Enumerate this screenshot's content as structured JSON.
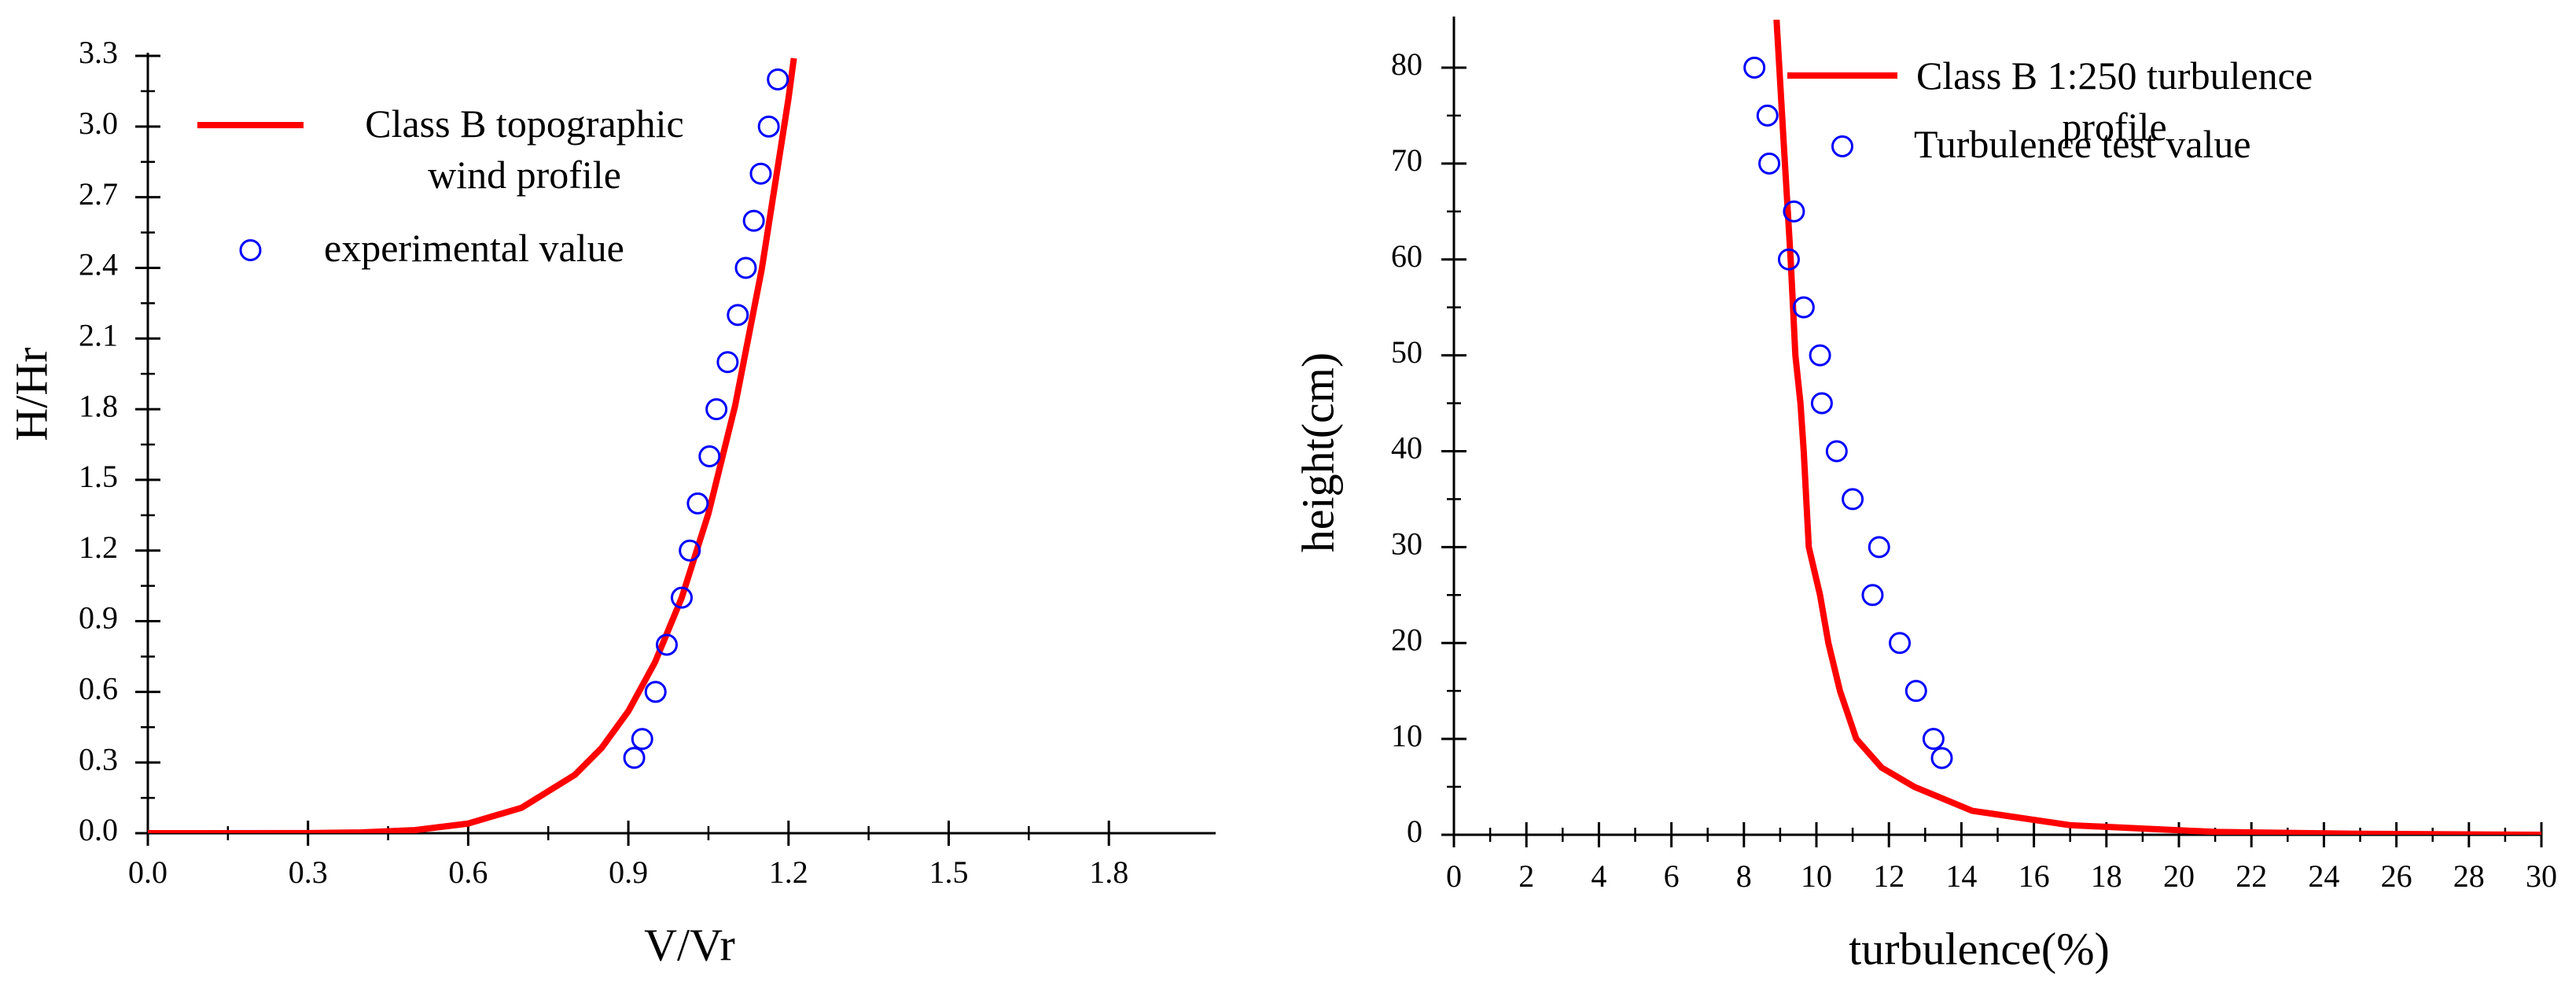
{
  "chart_data": [
    {
      "type": "line",
      "xlabel": "V/Vr",
      "ylabel": "H/Hr",
      "xlim": [
        0,
        2.0
      ],
      "ylim": [
        0,
        3.3
      ],
      "xticks": [
        {
          "value": 0,
          "label": "0.0"
        },
        0.3,
        0.6,
        0.9,
        1.2,
        1.5,
        1.8
      ],
      "yticks": [
        {
          "value": 0,
          "label": "0.0"
        },
        0.3,
        0.6,
        0.9,
        1.2,
        1.5,
        1.8,
        2.1,
        2.4,
        2.7,
        {
          "value": 3,
          "label": "3.0"
        },
        3.3
      ],
      "series": [
        {
          "name": "Class B topographic wind profile",
          "color": "#ff0000",
          "style": "line",
          "x": [
            0,
            0.3,
            0.4,
            0.5,
            0.6,
            0.7,
            0.8,
            0.85,
            0.9,
            0.95,
            1.0,
            1.05,
            1.1,
            1.15,
            1.2,
            1.21
          ],
          "values": [
            0,
            0.0006,
            0.0032,
            0.0131,
            0.041,
            0.108,
            0.248,
            0.362,
            0.518,
            0.726,
            1.0,
            1.357,
            1.815,
            2.396,
            3.12,
            3.29
          ]
        },
        {
          "name": "experimental value",
          "color": "#0000ff",
          "style": "marker",
          "x": [
            0.911,
            0.926,
            0.951,
            0.972,
            1.0,
            1.015,
            1.03,
            1.052,
            1.065,
            1.086,
            1.105,
            1.12,
            1.135,
            1.148,
            1.163,
            1.18
          ],
          "values": [
            0.32,
            0.4,
            0.6,
            0.8,
            1.0,
            1.2,
            1.4,
            1.6,
            1.8,
            2.0,
            2.2,
            2.4,
            2.6,
            2.8,
            3.0,
            3.2
          ]
        }
      ]
    },
    {
      "type": "line",
      "xlabel": "turbulence(%)",
      "ylabel": "height(cm)",
      "xlim": [
        0,
        30
      ],
      "ylim": [
        0,
        85
      ],
      "xticks": [
        0,
        2,
        4,
        6,
        8,
        10,
        12,
        14,
        16,
        18,
        20,
        22,
        24,
        26,
        28,
        30
      ],
      "yticks": [
        0,
        10,
        20,
        30,
        40,
        50,
        60,
        70,
        80
      ],
      "series": [
        {
          "name": "Class B 1:250 turbulence profile",
          "color": "#ff0000",
          "style": "line",
          "x": [
            8.9,
            9.1,
            9.29,
            9.42,
            9.56,
            9.65,
            9.79,
            10.1,
            10.33,
            10.65,
            11.1,
            11.8,
            12.7,
            14.3,
            17,
            21,
            25,
            30
          ],
          "values": [
            85,
            72,
            60,
            50,
            45,
            40,
            30,
            25,
            20,
            15,
            10,
            7,
            5,
            2.5,
            1,
            0.3,
            0.1,
            0
          ]
        },
        {
          "name": "Turbulence test value",
          "color": "#0000ff",
          "style": "marker",
          "x": [
            8.29,
            8.65,
            8.7,
            9.38,
            9.24,
            9.65,
            10.1,
            10.15,
            10.56,
            11.0,
            11.73,
            11.55,
            12.3,
            12.75,
            13.23,
            13.46
          ],
          "values": [
            80,
            75,
            70,
            65,
            60,
            55,
            50,
            45,
            40,
            35,
            30,
            25,
            20,
            15,
            10,
            8
          ]
        }
      ]
    }
  ]
}
